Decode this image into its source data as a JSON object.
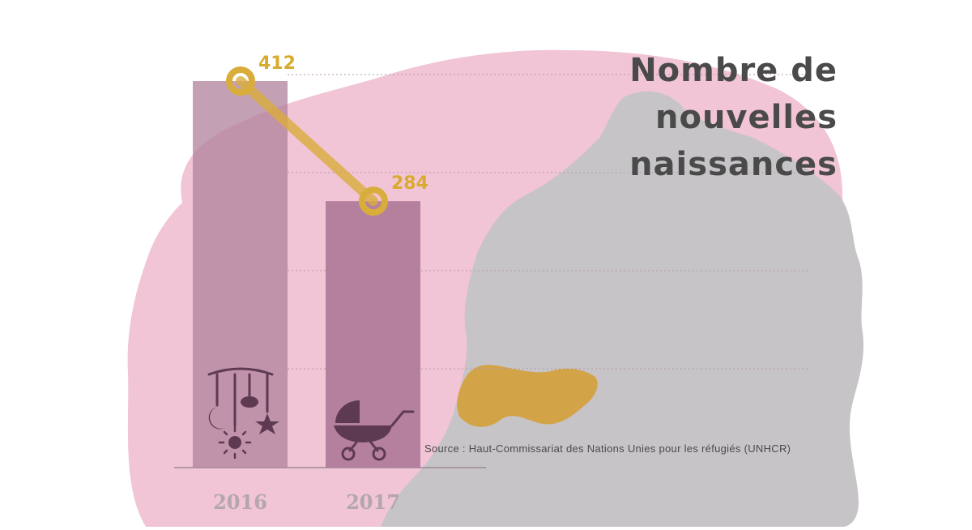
{
  "title_lines": [
    "Nombre de",
    "nouvelles",
    "naissances"
  ],
  "source": "Source : Haut-Commissariat des Nations Unies pour les réfugiés (UNHCR)",
  "icons": [
    "baby-mobile-icon",
    "stroller-icon"
  ],
  "colors": {
    "bar_2016": "#b2859e",
    "bar_2017": "#b07a99",
    "line": "#d9ad3c",
    "value_label": "#d8ab2e",
    "year_label": "#b3a6ad",
    "title": "#4a4a4a",
    "blob": "#f1c4d6",
    "map": "#c7c4c8",
    "highlight_region": "#d3a347"
  },
  "chart_data": {
    "type": "bar",
    "categories": [
      "2016",
      "2017"
    ],
    "values": [
      412,
      284
    ],
    "data_labels": [
      "412",
      "284"
    ],
    "overlay": "line",
    "title": "Nombre de nouvelles naissances",
    "xlabel": "",
    "ylabel": "",
    "ylim": [
      0,
      412
    ],
    "grid": true
  }
}
